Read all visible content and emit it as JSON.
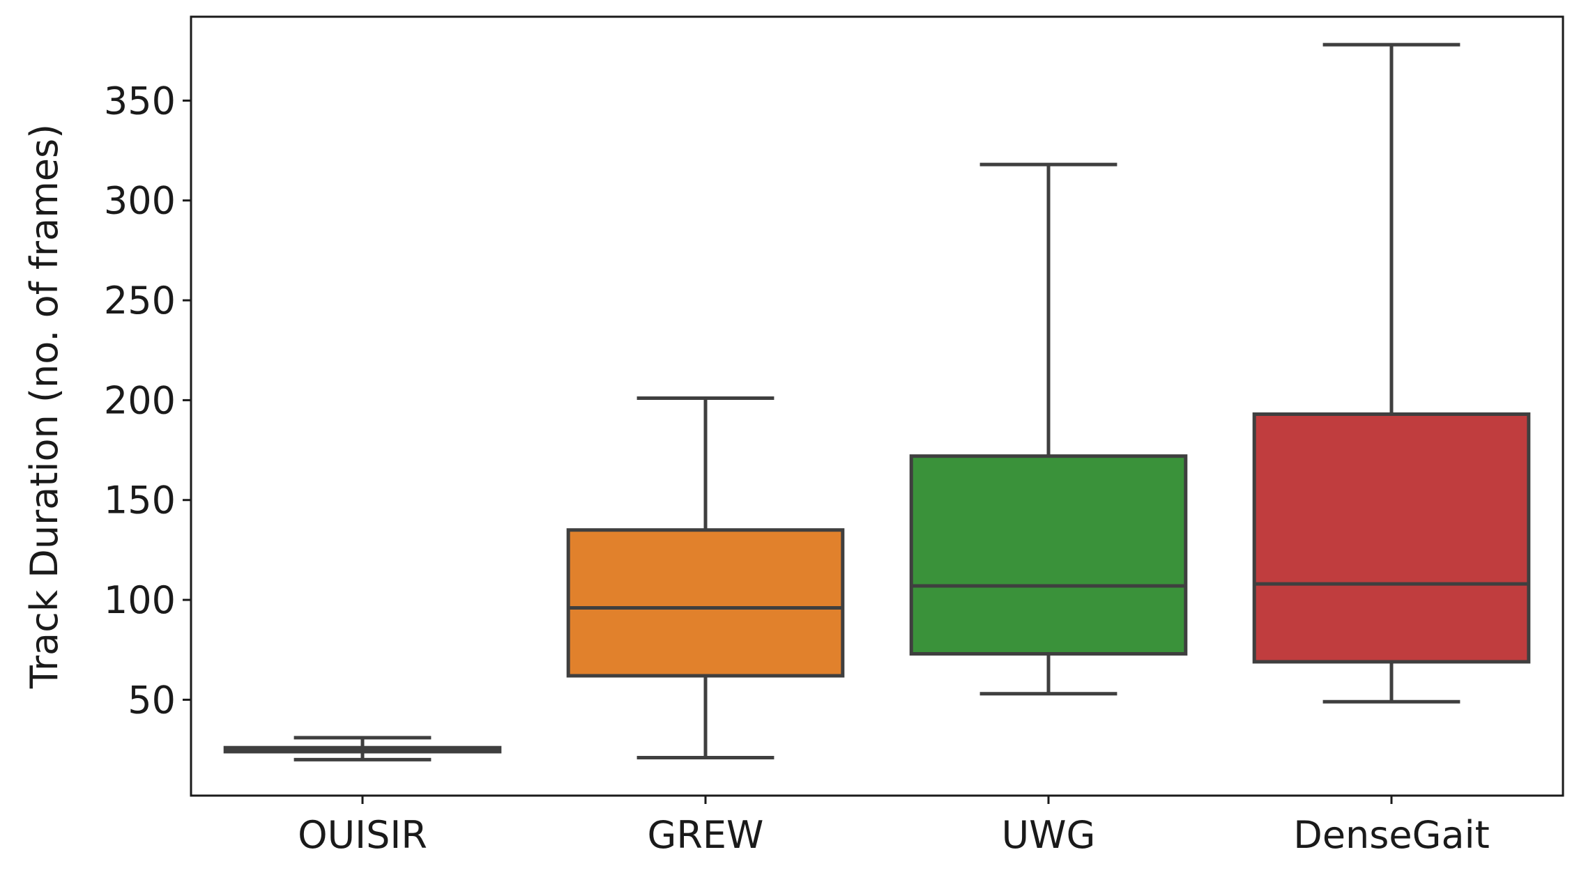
{
  "chart_data": {
    "type": "boxplot",
    "title": "",
    "xlabel": "",
    "ylabel": "Track Duration (no. of frames)",
    "ylim": [
      2,
      392
    ],
    "yticks": [
      50,
      100,
      150,
      200,
      250,
      300,
      350
    ],
    "categories": [
      "OUISIR",
      "GREW",
      "UWG",
      "DenseGait"
    ],
    "boxes": [
      {
        "name": "OUISIR",
        "whisker_low": 20,
        "q1": 24,
        "median": 25,
        "q3": 26,
        "whisker_high": 31,
        "color": "#3a75b0"
      },
      {
        "name": "GREW",
        "whisker_low": 21,
        "q1": 62,
        "median": 96,
        "q3": 135,
        "whisker_high": 201,
        "color": "#e1812c"
      },
      {
        "name": "UWG",
        "whisker_low": 53,
        "q1": 73,
        "median": 107,
        "q3": 172,
        "whisker_high": 318,
        "color": "#3a923a"
      },
      {
        "name": "DenseGait",
        "whisker_low": 49,
        "q1": 69,
        "median": 108,
        "q3": 193,
        "whisker_high": 378,
        "color": "#c03d3e"
      }
    ],
    "line_color": "#3f3f3f",
    "grid": false
  }
}
